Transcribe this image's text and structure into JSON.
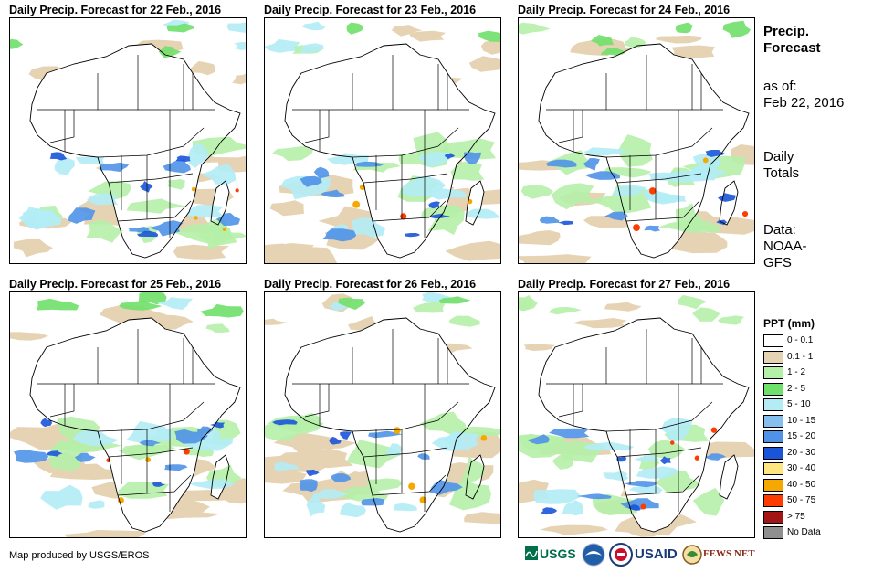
{
  "panels": [
    {
      "title": "Daily Precip. Forecast for 22 Feb., 2016"
    },
    {
      "title": "Daily Precip. Forecast for 23 Feb., 2016"
    },
    {
      "title": "Daily Precip. Forecast for 24 Feb., 2016"
    },
    {
      "title": "Daily Precip. Forecast for 25 Feb., 2016"
    },
    {
      "title": "Daily Precip. Forecast for 26 Feb., 2016"
    },
    {
      "title": "Daily Precip. Forecast for 27 Feb., 2016"
    }
  ],
  "side": {
    "title_line1": "Precip.",
    "title_line2": "Forecast",
    "asof_label": "as of:",
    "asof_date": "Feb 22, 2016",
    "totals_line1": "Daily",
    "totals_line2": "Totals",
    "data_line1": "Data:",
    "data_line2": "NOAA-",
    "data_line3": "GFS"
  },
  "legend": {
    "title": "PPT (mm)",
    "items": [
      {
        "label": "0 - 0.1",
        "color": "#ffffff"
      },
      {
        "label": "0.1 - 1",
        "color": "#e6d3b3"
      },
      {
        "label": "1 - 2",
        "color": "#b5f0a8"
      },
      {
        "label": "2 - 5",
        "color": "#6fe06a"
      },
      {
        "label": "5 - 10",
        "color": "#b3ecf5"
      },
      {
        "label": "10 - 15",
        "color": "#84bff0"
      },
      {
        "label": "15 - 20",
        "color": "#4f92e8"
      },
      {
        "label": "20 - 30",
        "color": "#1a55d9"
      },
      {
        "label": "30 - 40",
        "color": "#ffe680"
      },
      {
        "label": "40 - 50",
        "color": "#f5a800"
      },
      {
        "label": "50 - 75",
        "color": "#ff3c00"
      },
      {
        "label": "> 75",
        "color": "#a31515"
      },
      {
        "label": "No Data",
        "color": "#8f8f8f"
      }
    ]
  },
  "footer": {
    "credit": "Map produced by USGS/EROS"
  },
  "logos": {
    "usgs": "USGS",
    "usaid": "USAID",
    "fewsnet": "FEWS NET"
  }
}
